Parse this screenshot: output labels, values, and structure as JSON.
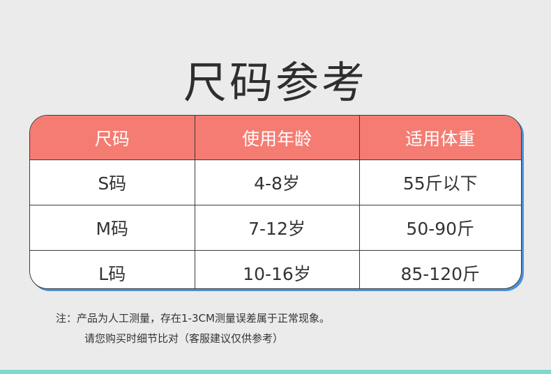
{
  "title": "尺码参考",
  "table": {
    "headers": [
      "尺码",
      "使用年龄",
      "适用体重"
    ],
    "rows": [
      [
        "S码",
        "4-8岁",
        "55斤以下"
      ],
      [
        "M码",
        "7-12岁",
        "50-90斤"
      ],
      [
        "L码",
        "10-16岁",
        "85-120斤"
      ]
    ]
  },
  "notes": [
    "注：产品为人工测量，存在1-3CM测量误差属于正常现象。",
    "请您购买时细节比对（客服建议仅供参考）"
  ],
  "colors": {
    "header": "#f47c72",
    "shadow": "#4a90d9",
    "background": "#ebebeb",
    "bottom_strip": "#7fd8cc"
  }
}
